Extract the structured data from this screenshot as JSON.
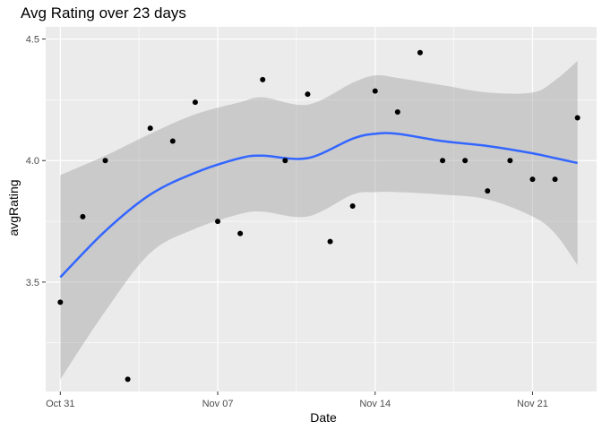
{
  "chart_data": {
    "type": "scatter",
    "title": "Avg Rating over 23 days",
    "xlabel": "Date",
    "ylabel": "avgRating",
    "x_ticks": [
      {
        "label": "Oct 31",
        "value": "2021-10-31"
      },
      {
        "label": "Nov 07",
        "value": "2021-11-07"
      },
      {
        "label": "Nov 14",
        "value": "2021-11-14"
      },
      {
        "label": "Nov 21",
        "value": "2021-11-21"
      }
    ],
    "y_ticks": [
      {
        "label": "3.5",
        "value": 3.5
      },
      {
        "label": "4.0",
        "value": 4.0
      },
      {
        "label": "4.5",
        "value": 4.5
      }
    ],
    "xlim": [
      "2021-10-30",
      "2021-11-24"
    ],
    "ylim": [
      3.05,
      4.55
    ],
    "grid": true,
    "points": [
      {
        "x": "2021-10-31",
        "y": 3.417
      },
      {
        "x": "2021-11-01",
        "y": 3.769
      },
      {
        "x": "2021-11-02",
        "y": 4.0
      },
      {
        "x": "2021-11-03",
        "y": 3.1
      },
      {
        "x": "2021-11-04",
        "y": 4.133
      },
      {
        "x": "2021-11-05",
        "y": 4.08
      },
      {
        "x": "2021-11-06",
        "y": 4.24
      },
      {
        "x": "2021-11-07",
        "y": 3.75
      },
      {
        "x": "2021-11-08",
        "y": 3.7
      },
      {
        "x": "2021-11-09",
        "y": 4.333
      },
      {
        "x": "2021-11-10",
        "y": 4.0
      },
      {
        "x": "2021-11-11",
        "y": 4.273
      },
      {
        "x": "2021-11-12",
        "y": 3.667
      },
      {
        "x": "2021-11-13",
        "y": 3.813
      },
      {
        "x": "2021-11-14",
        "y": 4.286
      },
      {
        "x": "2021-11-15",
        "y": 4.2
      },
      {
        "x": "2021-11-16",
        "y": 4.444
      },
      {
        "x": "2021-11-17",
        "y": 4.0
      },
      {
        "x": "2021-11-18",
        "y": 4.0
      },
      {
        "x": "2021-11-19",
        "y": 3.875
      },
      {
        "x": "2021-11-20",
        "y": 4.0
      },
      {
        "x": "2021-11-21",
        "y": 3.923
      },
      {
        "x": "2021-11-22",
        "y": 3.923
      },
      {
        "x": "2021-11-23",
        "y": 4.176
      }
    ],
    "smooth": {
      "type": "loess",
      "color": "#3366ff",
      "band_color": "#999999",
      "points": [
        {
          "x": "2021-10-31",
          "y": 3.52,
          "ymin": 3.1,
          "ymax": 3.94
        },
        {
          "x": "2021-11-02",
          "y": 3.71,
          "ymin": 3.38,
          "ymax": 4.02
        },
        {
          "x": "2021-11-04",
          "y": 3.86,
          "ymin": 3.62,
          "ymax": 4.11
        },
        {
          "x": "2021-11-06",
          "y": 3.95,
          "ymin": 3.72,
          "ymax": 4.19
        },
        {
          "x": "2021-11-08",
          "y": 4.01,
          "ymin": 3.78,
          "ymax": 4.24
        },
        {
          "x": "2021-11-09",
          "y": 4.02,
          "ymin": 3.79,
          "ymax": 4.26
        },
        {
          "x": "2021-11-11",
          "y": 4.01,
          "ymin": 3.77,
          "ymax": 4.23
        },
        {
          "x": "2021-11-13",
          "y": 4.09,
          "ymin": 3.86,
          "ymax": 4.32
        },
        {
          "x": "2021-11-14",
          "y": 4.11,
          "ymin": 3.87,
          "ymax": 4.35
        },
        {
          "x": "2021-11-15",
          "y": 4.11,
          "ymin": 3.87,
          "ymax": 4.34
        },
        {
          "x": "2021-11-17",
          "y": 4.08,
          "ymin": 3.86,
          "ymax": 4.31
        },
        {
          "x": "2021-11-19",
          "y": 4.06,
          "ymin": 3.84,
          "ymax": 4.28
        },
        {
          "x": "2021-11-21",
          "y": 4.03,
          "ymin": 3.77,
          "ymax": 4.28
        },
        {
          "x": "2021-11-22",
          "y": 4.01,
          "ymin": 3.7,
          "ymax": 4.33
        },
        {
          "x": "2021-11-23",
          "y": 3.99,
          "ymin": 3.57,
          "ymax": 4.41
        }
      ]
    },
    "colors": {
      "panel_bg": "#ebebeb",
      "grid_major": "#ffffff",
      "point": "#000000"
    }
  }
}
